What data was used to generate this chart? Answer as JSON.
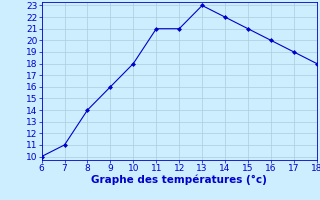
{
  "x": [
    6,
    7,
    8,
    9,
    10,
    11,
    12,
    13,
    14,
    15,
    16,
    17,
    18
  ],
  "y": [
    10,
    11,
    14,
    16,
    18,
    21,
    21,
    23,
    22,
    21,
    20,
    19,
    18
  ],
  "xlabel": "Graphe des températures (°c)",
  "xlim": [
    6,
    18
  ],
  "ylim": [
    10,
    23
  ],
  "xticks": [
    6,
    7,
    8,
    9,
    10,
    11,
    12,
    13,
    14,
    15,
    16,
    17,
    18
  ],
  "yticks": [
    10,
    11,
    12,
    13,
    14,
    15,
    16,
    17,
    18,
    19,
    20,
    21,
    22,
    23
  ],
  "line_color": "#0000cc",
  "marker": "D",
  "marker_size": 2.0,
  "bg_color": "#cceeff",
  "grid_color": "#aaccdd",
  "tick_color": "#0000cc",
  "label_color": "#0000cc",
  "line_width": 0.8,
  "font_size": 6.5,
  "xlabel_fontsize": 7.5
}
